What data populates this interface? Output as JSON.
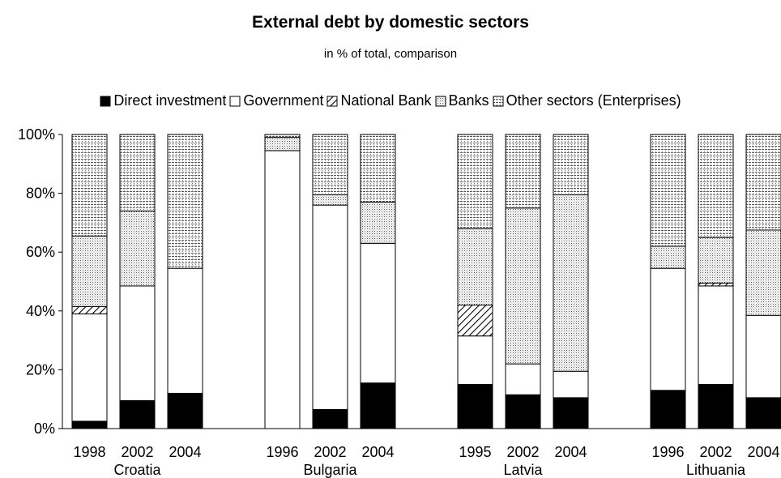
{
  "chart_data": {
    "type": "bar",
    "stacked": "percent",
    "title": "External debt by domestic sectors",
    "subtitle": "in % of total, comparison",
    "ylim": [
      0,
      100
    ],
    "yticks": [
      "0%",
      "20%",
      "40%",
      "60%",
      "80%",
      "100%"
    ],
    "grid": false,
    "legend_position": "top",
    "groups": [
      {
        "name": "Croatia",
        "years": [
          "1998",
          "2002",
          "2004"
        ]
      },
      {
        "name": "Bulgaria",
        "years": [
          "1996",
          "2002",
          "2004"
        ]
      },
      {
        "name": "Latvia",
        "years": [
          "1995",
          "2002",
          "2004"
        ]
      },
      {
        "name": "Lithuania",
        "years": [
          "1996",
          "2002",
          "2004"
        ]
      }
    ],
    "series": [
      {
        "name": "Direct investment",
        "pattern": "solid-black",
        "values": [
          2.5,
          9.5,
          12,
          0,
          6.5,
          15.5,
          15,
          11.5,
          10.5,
          13,
          15,
          10.5
        ]
      },
      {
        "name": "Government",
        "pattern": "white",
        "values": [
          36.5,
          39,
          42.5,
          94.5,
          69.5,
          47.5,
          16.5,
          10.5,
          9,
          41.5,
          33.5,
          28
        ]
      },
      {
        "name": "National Bank",
        "pattern": "diagonal-hatch",
        "values": [
          2.5,
          0,
          0,
          0,
          0,
          0,
          10.5,
          0,
          0,
          0,
          1,
          0
        ]
      },
      {
        "name": "Banks",
        "pattern": "dense-dots",
        "values": [
          24,
          25.5,
          0,
          4.5,
          3.5,
          14,
          26,
          53,
          60,
          7.5,
          15.5,
          29
        ]
      },
      {
        "name": "Other sectors (Enterprises)",
        "pattern": "dashed-dots",
        "values": [
          34.5,
          26,
          45.5,
          1,
          20.5,
          23,
          32,
          25,
          20.5,
          38,
          35,
          32.5
        ]
      }
    ]
  }
}
